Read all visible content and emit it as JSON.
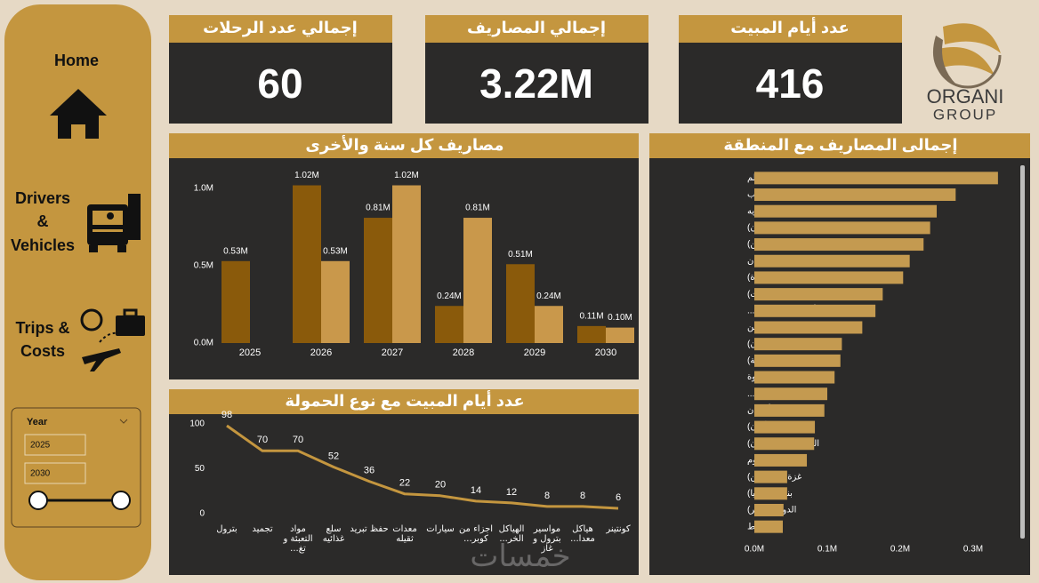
{
  "sidebar": {
    "home": "Home",
    "drivers": [
      "Drivers",
      "&",
      "Vehicles"
    ],
    "trips": [
      "Trips &",
      "Costs"
    ]
  },
  "slicer": {
    "title": "Year",
    "from": "2025",
    "to": "2030"
  },
  "kpis": [
    {
      "title": "إجمالي عدد الرحلات",
      "value": "60"
    },
    {
      "title": "إجمالي المصاريف",
      "value": "3.22M"
    },
    {
      "title": "عدد أيام المبيت",
      "value": "416"
    }
  ],
  "logo": {
    "line1": "ORGANI",
    "line2": "GROUP"
  },
  "watermark": "خمسات",
  "chart_data": [
    {
      "type": "bar",
      "title": "مصاريف كل سنة والأخرى",
      "categories": [
        "2025",
        "2026",
        "2027",
        "2028",
        "2029",
        "2030"
      ],
      "series": [
        {
          "color": "#8a5a0b",
          "values": [
            530000,
            1020000,
            810000,
            240000,
            510000,
            110000
          ],
          "value_labels": [
            "0.53M",
            "1.02M",
            "0.81M",
            "0.24M",
            "0.51M",
            "0.11M"
          ]
        },
        {
          "color": "#c9984b",
          "values": [
            null,
            530000,
            1020000,
            810000,
            240000,
            100000
          ],
          "value_labels": [
            null,
            "0.53M",
            "1.02M",
            "0.81M",
            "0.24M",
            "0.10M"
          ]
        }
      ],
      "ylim": [
        0,
        1100000
      ],
      "yticks": [
        {
          "value": 0,
          "label": "0.0M"
        },
        {
          "value": 500000,
          "label": "0.5M"
        },
        {
          "value": 1000000,
          "label": "1.0M"
        }
      ],
      "grid": false
    },
    {
      "type": "line",
      "title": "عدد أيام المبيت مع نوع الحمولة",
      "categories": [
        "بترول",
        "تجميد",
        "مواد التعبئة و تغ...",
        "سلع غذائيه",
        "حفظ تبريد",
        "معدات ثقيله",
        "سيارات",
        "اجزاء من كوبر...",
        "الهياكل الخر...",
        "مواسير بترول و غاز",
        "هياكل معدا...",
        "كونتينر"
      ],
      "values": [
        98,
        70,
        70,
        52,
        36,
        22,
        20,
        14,
        12,
        8,
        8,
        6
      ],
      "color": "#c4963f",
      "ylim": [
        0,
        100
      ],
      "yticks": [
        0,
        50,
        100
      ],
      "grid": false
    },
    {
      "type": "bar",
      "orientation": "horizontal",
      "title": "إجمالى المصاريف مع المنطقة",
      "categories": [
        "مرسى علم",
        "حلايب",
        "الاسكندريه",
        "الفيوم (بحيرة قارون)",
        "القدس (فلسطين)",
        "اسوان",
        "دمنهور (البحيرة)",
        "الكويت (الكويت)",
        "رأس سدر (جنوب ...",
        "شلاتين",
        "بورتسودان (السودان)",
        "الرياض (السعودية)",
        "واحة سيوة",
        "دبي (الإمارات العر...",
        "أسوان",
        "عمان (الأردن)",
        "الخرطوم (السودان)",
        "السلوم",
        "غزة (فلسطين)",
        "بنغازي (ليبيا)",
        "الدوحة (قطر)",
        "دمياط"
      ],
      "values": [
        334000,
        276000,
        250000,
        241000,
        232000,
        213000,
        204000,
        176000,
        166000,
        148000,
        120000,
        118000,
        110000,
        100000,
        96000,
        83000,
        82000,
        72000,
        45000,
        45000,
        40000,
        39000
      ],
      "color": "#c49a50",
      "xlim": [
        0,
        350000
      ],
      "xticks": [
        {
          "value": 0,
          "label": "0.0M"
        },
        {
          "value": 100000,
          "label": "0.1M"
        },
        {
          "value": 200000,
          "label": "0.2M"
        },
        {
          "value": 300000,
          "label": "0.3M"
        }
      ],
      "grid": false
    }
  ]
}
